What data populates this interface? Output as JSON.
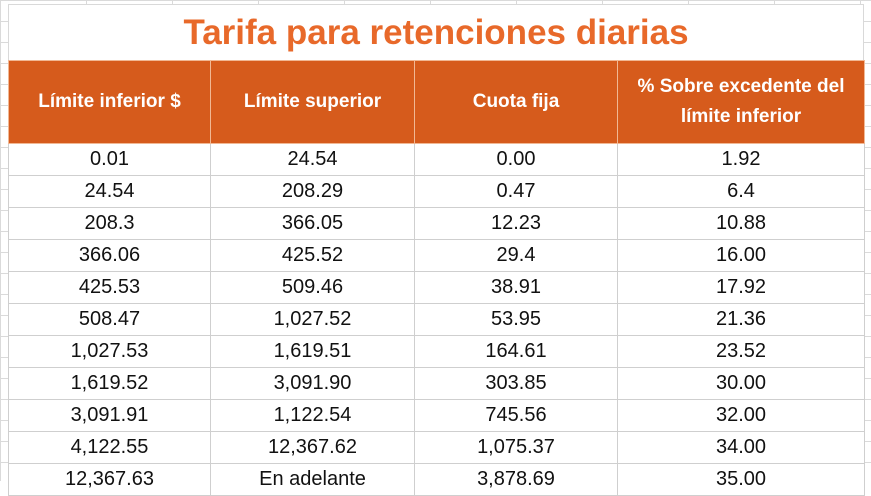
{
  "title": "Tarifa para retenciones diarias",
  "headers": [
    "Límite inferior $",
    "Límite superior",
    "Cuota fija",
    "% Sobre excedente del límite inferior"
  ],
  "rows": [
    [
      "0.01",
      "24.54",
      "0.00",
      "1.92"
    ],
    [
      "24.54",
      "208.29",
      "0.47",
      "6.4"
    ],
    [
      "208.3",
      "366.05",
      "12.23",
      "10.88"
    ],
    [
      "366.06",
      "425.52",
      "29.4",
      "16.00"
    ],
    [
      "425.53",
      "509.46",
      "38.91",
      "17.92"
    ],
    [
      "508.47",
      "1,027.52",
      "53.95",
      "21.36"
    ],
    [
      "1,027.53",
      "1,619.51",
      "164.61",
      "23.52"
    ],
    [
      "1,619.52",
      "3,091.90",
      "303.85",
      "30.00"
    ],
    [
      "3,091.91",
      "1,122.54",
      "745.56",
      "32.00"
    ],
    [
      "4,122.55",
      "12,367.62",
      "1,075.37",
      "34.00"
    ],
    [
      "12,367.63",
      "En adelante",
      "3,878.69",
      "35.00"
    ]
  ]
}
